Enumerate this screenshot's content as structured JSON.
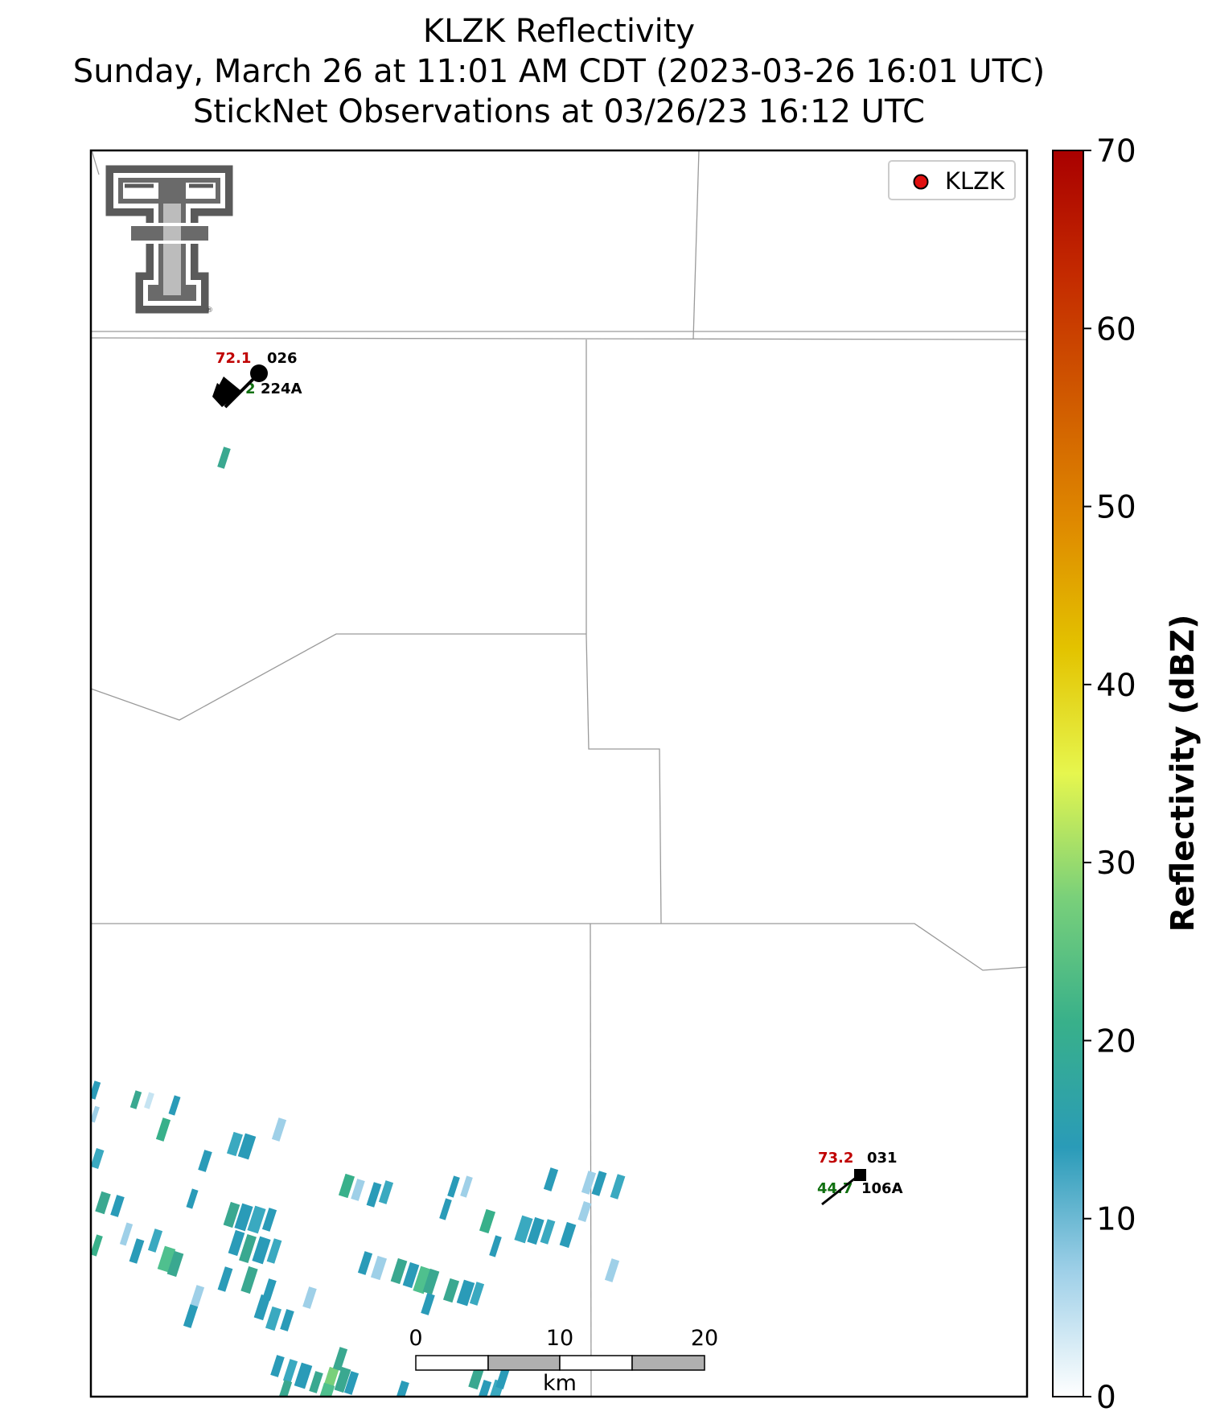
{
  "title": {
    "line1": "KLZK Reflectivity",
    "line2": "Sunday, March 26 at 11:01 AM CDT (2023-03-26 16:01 UTC)",
    "line3": "StickNet Observations at 03/26/23 16:12 UTC"
  },
  "legend": {
    "marker_color": "#e01010",
    "label": "KLZK"
  },
  "colorbar": {
    "label": "Reflectivity (dBZ)",
    "ticks": [
      "0",
      "10",
      "20",
      "30",
      "40",
      "50",
      "60",
      "70"
    ],
    "range": [
      0,
      70
    ],
    "colors": [
      "#ffffff",
      "#9fd0e8",
      "#2a9bb8",
      "#38b08a",
      "#79d07a",
      "#e6f64e",
      "#e3c300",
      "#df8a00",
      "#d05a00",
      "#c42a00",
      "#a90000"
    ]
  },
  "stations": [
    {
      "id": "224A",
      "temperature": "72.1",
      "wind_direction": "026",
      "dewpoint": "2",
      "temp_color": "#c00000",
      "dew_color": "#107010",
      "marker": "circle"
    },
    {
      "id": "106A",
      "temperature": "73.2",
      "wind_direction": "031",
      "dewpoint": "44.7",
      "temp_color": "#c00000",
      "dew_color": "#107010",
      "marker": "square"
    }
  ],
  "scale_bar": {
    "labels": [
      "0",
      "10",
      "20"
    ],
    "unit": "km"
  },
  "logo": {
    "name": "Texas Tech double-T logo",
    "mark": "®"
  }
}
